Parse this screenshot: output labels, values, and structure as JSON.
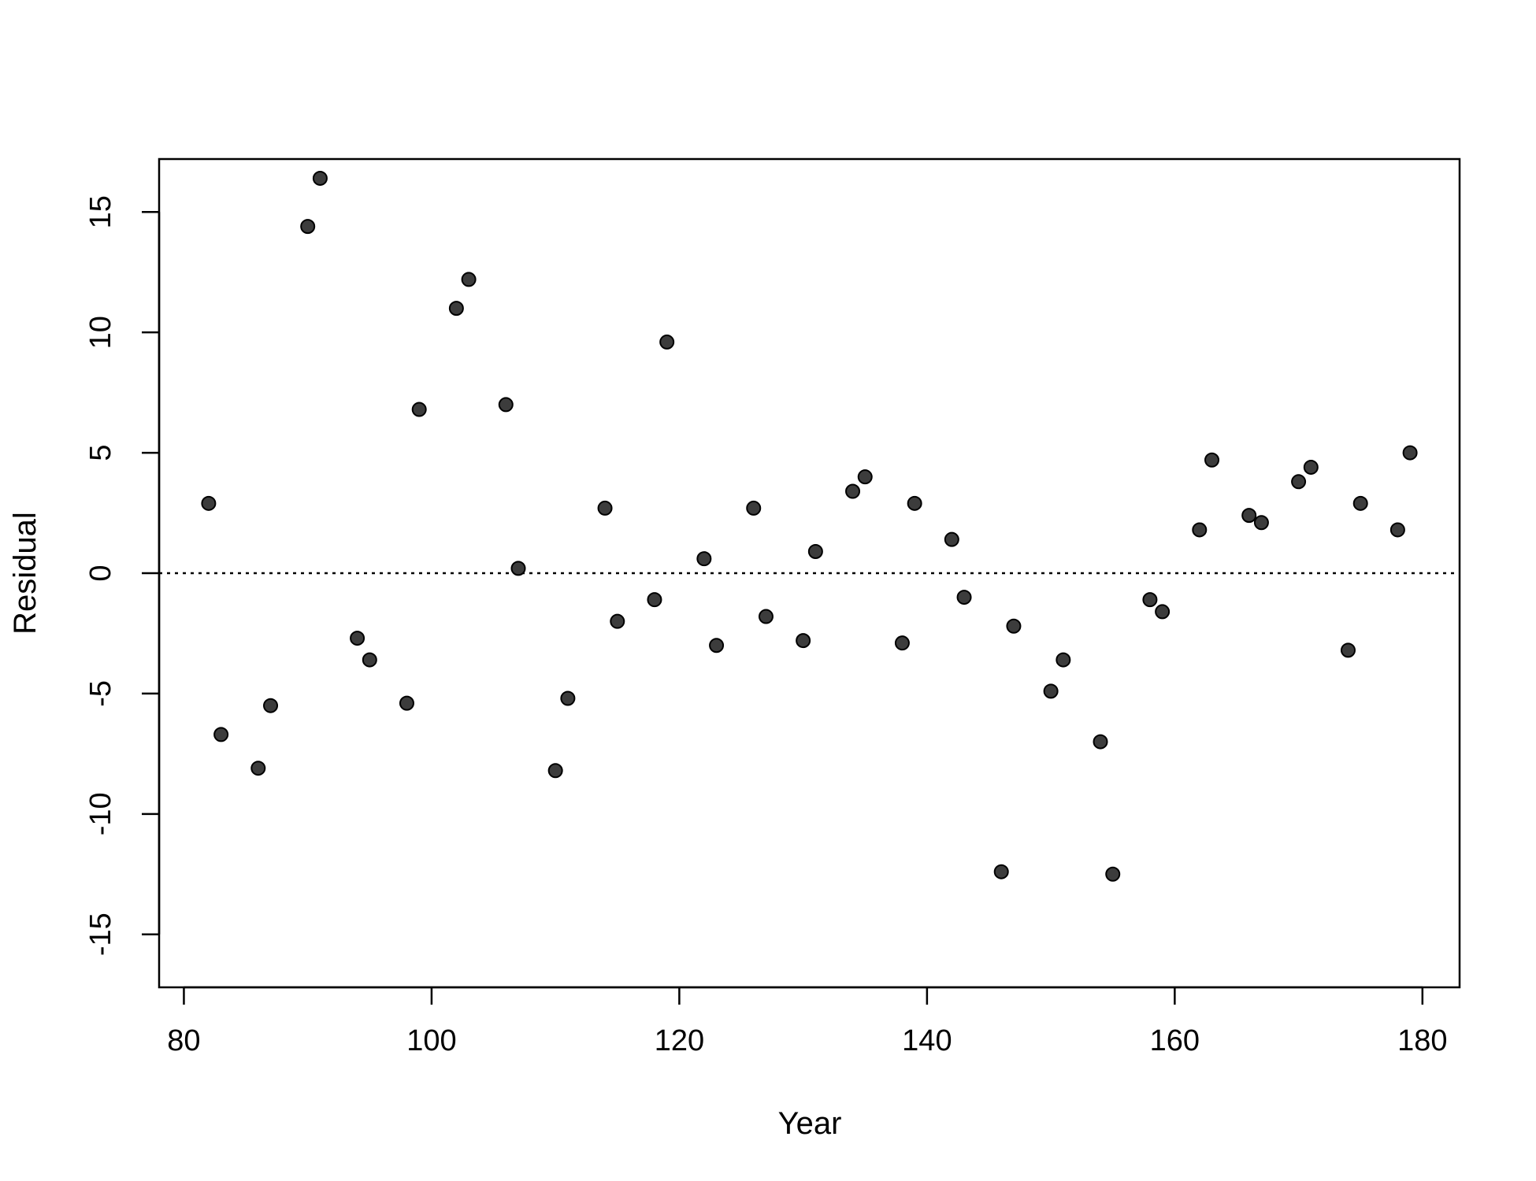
{
  "chart_data": {
    "type": "scatter",
    "title": "",
    "xlabel": "Year",
    "ylabel": "Residual",
    "xlim": [
      78,
      183
    ],
    "ylim": [
      -17.2,
      17.2
    ],
    "xticks": [
      80,
      100,
      120,
      140,
      160,
      180
    ],
    "yticks": [
      -15,
      -10,
      -5,
      0,
      5,
      10,
      15
    ],
    "xtick_labels": [
      "80",
      "100",
      "120",
      "140",
      "160",
      "180"
    ],
    "ytick_labels": [
      "-15",
      "-10",
      "-5",
      "0",
      "5",
      "10",
      "15"
    ],
    "reference_line": {
      "y": 0,
      "style": "dotted"
    },
    "grid": false,
    "point_color": "#3c3c3c",
    "series": [
      {
        "points": [
          [
            82,
            2.9
          ],
          [
            83,
            -6.7
          ],
          [
            86,
            -8.1
          ],
          [
            87,
            -5.5
          ],
          [
            90,
            14.4
          ],
          [
            91,
            16.4
          ],
          [
            94,
            -2.7
          ],
          [
            95,
            -3.6
          ],
          [
            98,
            -5.4
          ],
          [
            99,
            6.8
          ],
          [
            102,
            11.0
          ],
          [
            103,
            12.2
          ],
          [
            106,
            7.0
          ],
          [
            107,
            0.2
          ],
          [
            110,
            -8.2
          ],
          [
            111,
            -5.2
          ],
          [
            114,
            2.7
          ],
          [
            115,
            -2.0
          ],
          [
            118,
            -1.1
          ],
          [
            119,
            9.6
          ],
          [
            122,
            0.6
          ],
          [
            123,
            -3.0
          ],
          [
            126,
            2.7
          ],
          [
            127,
            -1.8
          ],
          [
            130,
            -2.8
          ],
          [
            131,
            0.9
          ],
          [
            134,
            3.4
          ],
          [
            135,
            4.0
          ],
          [
            138,
            -2.9
          ],
          [
            139,
            2.9
          ],
          [
            142,
            1.4
          ],
          [
            143,
            -1.0
          ],
          [
            146,
            -12.4
          ],
          [
            147,
            -2.2
          ],
          [
            150,
            -4.9
          ],
          [
            151,
            -3.6
          ],
          [
            154,
            -7.0
          ],
          [
            155,
            -12.5
          ],
          [
            158,
            -1.1
          ],
          [
            159,
            -1.6
          ],
          [
            162,
            1.8
          ],
          [
            163,
            4.7
          ],
          [
            166,
            2.4
          ],
          [
            167,
            2.1
          ],
          [
            170,
            3.8
          ],
          [
            171,
            4.4
          ],
          [
            174,
            -3.2
          ],
          [
            175,
            2.9
          ],
          [
            178,
            1.8
          ],
          [
            179,
            5.0
          ]
        ]
      }
    ]
  }
}
